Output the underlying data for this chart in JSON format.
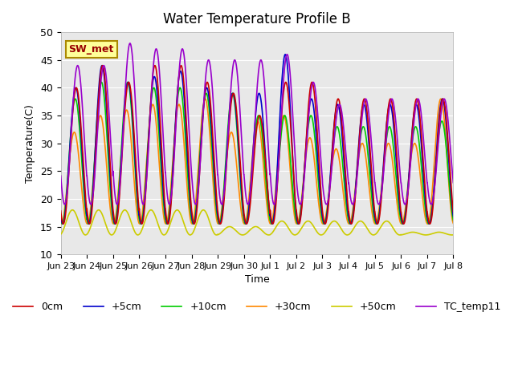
{
  "title": "Water Temperature Profile B",
  "xlabel": "Time",
  "ylabel": "Temperature(C)",
  "ylim": [
    10,
    50
  ],
  "bg_color": "#e8e8e8",
  "series_labels": [
    "0cm",
    "+5cm",
    "+10cm",
    "+30cm",
    "+50cm",
    "TC_temp11"
  ],
  "series_colors": [
    "#cc0000",
    "#0000cc",
    "#00cc00",
    "#ff8800",
    "#cccc00",
    "#9900cc"
  ],
  "tick_labels": [
    "Jun 23",
    "Jun 24",
    "Jun 25",
    "Jun 26",
    "Jun 27",
    "Jun 28",
    "Jun 29",
    "Jun 30",
    "Jul 1",
    "Jul 2",
    "Jul 3",
    "Jul 4",
    "Jul 5",
    "Jul 6",
    "Jul 7",
    "Jul 8"
  ],
  "num_days": 15,
  "pts_per_day": 144,
  "linewidth": 1.2,
  "annotation_box_color": "#ffff99",
  "annotation_box_edge": "#aa8800",
  "annotation_text": "SW_met",
  "annotation_text_color": "#990000",
  "max_0cm": [
    40,
    44,
    41,
    44,
    44,
    41,
    39,
    35,
    41,
    41,
    38,
    38,
    38,
    38,
    38
  ],
  "max_5cm": [
    40,
    44,
    41,
    42,
    43,
    40,
    39,
    39,
    46,
    38,
    37,
    37,
    37,
    37,
    38
  ],
  "max_10cm": [
    38,
    41,
    41,
    40,
    40,
    39,
    39,
    35,
    35,
    35,
    33,
    33,
    33,
    33,
    34
  ],
  "max_30cm": [
    32,
    35,
    36,
    37,
    37,
    38,
    32,
    34,
    35,
    31,
    29,
    30,
    30,
    30,
    38
  ],
  "max_50cm": [
    18,
    18,
    18,
    18,
    18,
    18,
    15,
    15,
    16,
    16,
    16,
    16,
    16,
    14,
    14
  ],
  "max_tc": [
    44,
    44,
    48,
    47,
    47,
    45,
    45,
    45,
    46,
    41,
    37,
    38,
    38,
    38,
    38
  ],
  "min_base": 15.5,
  "min_tc": 19.0,
  "min_50cm": 13.5
}
